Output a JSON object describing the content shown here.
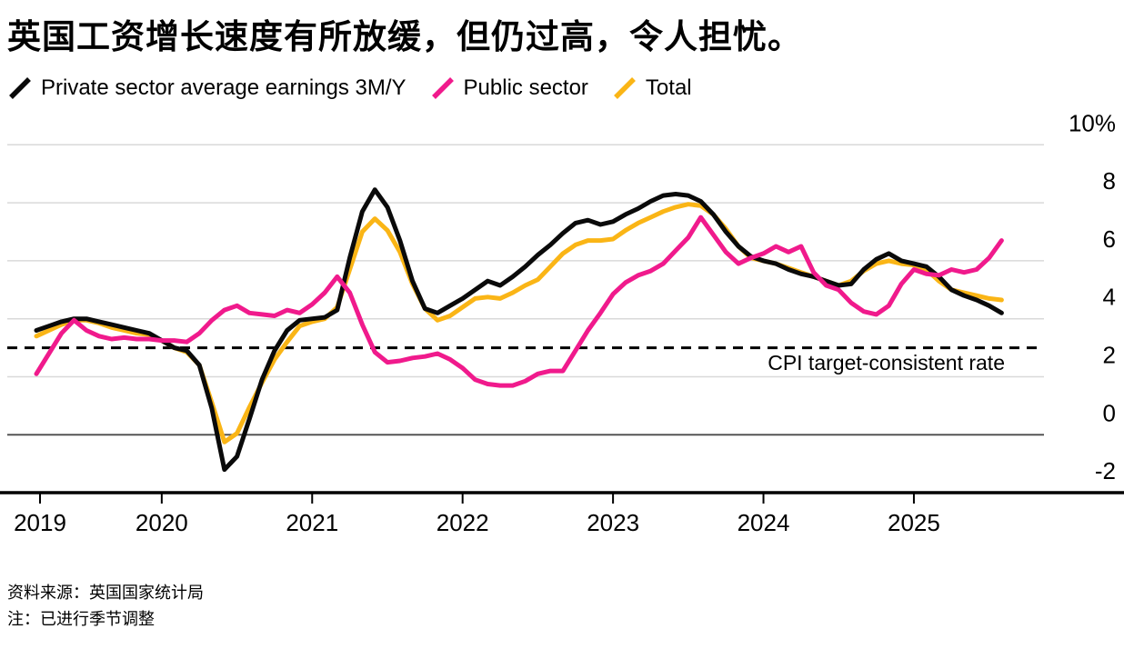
{
  "header": {
    "title": "英国工资增长速度有所放缓，但仍过高，令人担忧。"
  },
  "legend": {
    "items": [
      {
        "label": "Private sector average earnings 3M/Y",
        "color": "#0a0a0a"
      },
      {
        "label": "Public sector",
        "color": "#f01a8c"
      },
      {
        "label": "Total",
        "color": "#fab516"
      }
    ]
  },
  "chart_data": {
    "type": "line",
    "unit": "%",
    "frequency": "monthly",
    "start_month": "2019-03",
    "end_month": "2025-08",
    "grid": true,
    "ylim": [
      -2.6,
      10.4
    ],
    "y_axis": {
      "labels": [
        "10%",
        "8",
        "6",
        "4",
        "2",
        "0",
        "-2"
      ],
      "values": [
        10,
        8,
        6,
        4,
        2,
        0,
        -2
      ]
    },
    "x_axis": {
      "labels": [
        "2019",
        "2020",
        "2021",
        "2022",
        "2023",
        "2024",
        "2025"
      ],
      "month_indices": [
        0,
        10,
        22,
        34,
        46,
        58,
        70
      ]
    },
    "reference_line": {
      "label": "CPI target-consistent rate",
      "value": 3
    },
    "series": [
      {
        "name": "Private sector average earnings 3M/Y",
        "color": "#0a0a0a",
        "values": [
          3.6,
          3.75,
          3.9,
          4.0,
          4.0,
          3.9,
          3.8,
          3.7,
          3.6,
          3.5,
          3.25,
          3.0,
          2.9,
          2.4,
          0.9,
          -1.2,
          -0.75,
          0.55,
          1.9,
          2.9,
          3.6,
          3.95,
          4.0,
          4.05,
          4.3,
          6.1,
          7.7,
          8.45,
          7.85,
          6.7,
          5.3,
          4.35,
          4.2,
          4.45,
          4.7,
          5.0,
          5.3,
          5.15,
          5.45,
          5.8,
          6.2,
          6.55,
          6.95,
          7.3,
          7.4,
          7.25,
          7.35,
          7.6,
          7.8,
          8.05,
          8.25,
          8.3,
          8.25,
          8.05,
          7.6,
          7.0,
          6.5,
          6.15,
          6.0,
          5.9,
          5.7,
          5.55,
          5.45,
          5.3,
          5.15,
          5.2,
          5.7,
          6.05,
          6.25,
          6.0,
          5.9,
          5.8,
          5.45,
          5.0,
          4.8,
          4.65,
          4.45,
          4.2
        ]
      },
      {
        "name": "Public sector",
        "color": "#f01a8c",
        "values": [
          2.1,
          2.8,
          3.5,
          3.95,
          3.6,
          3.4,
          3.3,
          3.35,
          3.3,
          3.3,
          3.25,
          3.25,
          3.2,
          3.5,
          3.95,
          4.3,
          4.45,
          4.2,
          4.15,
          4.1,
          4.3,
          4.2,
          4.5,
          4.9,
          5.45,
          4.9,
          3.8,
          2.85,
          2.5,
          2.55,
          2.65,
          2.7,
          2.8,
          2.6,
          2.3,
          1.9,
          1.75,
          1.7,
          1.7,
          1.85,
          2.1,
          2.2,
          2.2,
          2.9,
          3.6,
          4.2,
          4.85,
          5.25,
          5.5,
          5.65,
          5.9,
          6.35,
          6.8,
          7.5,
          6.9,
          6.3,
          5.9,
          6.1,
          6.25,
          6.5,
          6.3,
          6.5,
          5.6,
          5.15,
          5.0,
          4.55,
          4.25,
          4.15,
          4.45,
          5.2,
          5.7,
          5.55,
          5.5,
          5.7,
          5.6,
          5.7,
          6.1,
          6.7
        ]
      },
      {
        "name": "Total",
        "color": "#fab516",
        "values": [
          3.4,
          3.6,
          3.8,
          3.95,
          3.95,
          3.85,
          3.7,
          3.6,
          3.5,
          3.45,
          3.25,
          3.0,
          2.85,
          2.4,
          1.1,
          -0.25,
          0.05,
          0.95,
          1.8,
          2.6,
          3.2,
          3.75,
          3.9,
          4.0,
          4.4,
          5.7,
          7.0,
          7.45,
          7.05,
          6.3,
          5.2,
          4.35,
          3.95,
          4.1,
          4.4,
          4.7,
          4.75,
          4.7,
          4.9,
          5.15,
          5.35,
          5.8,
          6.25,
          6.55,
          6.7,
          6.7,
          6.75,
          7.05,
          7.3,
          7.5,
          7.7,
          7.85,
          7.95,
          7.9,
          7.6,
          7.1,
          6.5,
          6.1,
          6.0,
          5.9,
          5.75,
          5.6,
          5.45,
          5.3,
          5.15,
          5.3,
          5.65,
          5.9,
          6.0,
          5.9,
          5.85,
          5.7,
          5.3,
          5.0,
          4.9,
          4.8,
          4.7,
          4.65
        ]
      }
    ]
  },
  "footer": {
    "source": "资料来源：英国国家统计局",
    "note": "注：已进行季节调整"
  }
}
